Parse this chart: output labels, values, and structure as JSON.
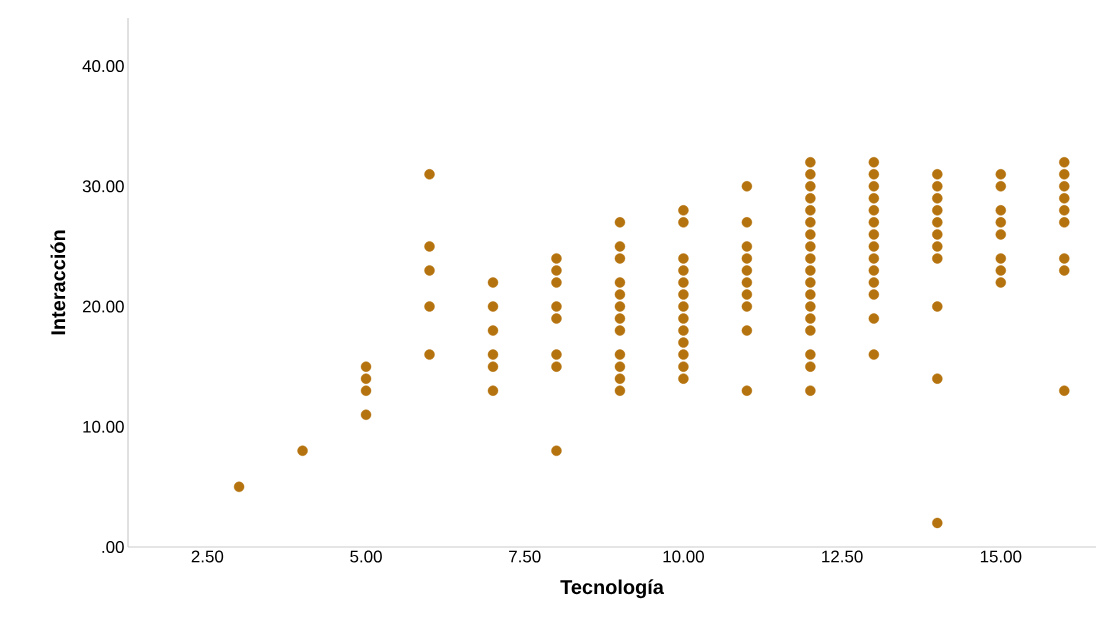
{
  "chart_data": {
    "type": "scatter",
    "xlabel": "Tecnología",
    "ylabel": "Interacción",
    "xlim": [
      1.25,
      16.5
    ],
    "ylim": [
      0,
      44
    ],
    "xticks": [
      {
        "value": 2.5,
        "label": "2.50"
      },
      {
        "value": 5,
        "label": "5.00"
      },
      {
        "value": 7.5,
        "label": "7.50"
      },
      {
        "value": 10,
        "label": "10.00"
      },
      {
        "value": 12.5,
        "label": "12.50"
      },
      {
        "value": 15,
        "label": "15.00"
      }
    ],
    "yticks": [
      {
        "value": 0,
        "label": ".00"
      },
      {
        "value": 10,
        "label": "10.00"
      },
      {
        "value": 20,
        "label": "20.00"
      },
      {
        "value": 30,
        "label": "30.00"
      },
      {
        "value": 40,
        "label": "40.00"
      }
    ],
    "grid": false,
    "marker": "circle",
    "series": [
      {
        "color": "#b5730f",
        "x": [
          3,
          4,
          5,
          5,
          5,
          5,
          6,
          6,
          6,
          6,
          6,
          7,
          7,
          7,
          7,
          7,
          7,
          8,
          8,
          8,
          8,
          8,
          8,
          8,
          8,
          9,
          9,
          9,
          9,
          9,
          9,
          9,
          9,
          9,
          9,
          9,
          9,
          10,
          10,
          10,
          10,
          10,
          10,
          10,
          10,
          10,
          10,
          10,
          10,
          10,
          11,
          11,
          11,
          11,
          11,
          11,
          11,
          11,
          11,
          11,
          12,
          12,
          12,
          12,
          12,
          12,
          12,
          12,
          12,
          12,
          12,
          12,
          12,
          12,
          12,
          12,
          12,
          12,
          13,
          13,
          13,
          13,
          13,
          13,
          13,
          13,
          13,
          13,
          13,
          13,
          13,
          13,
          14,
          14,
          14,
          14,
          14,
          14,
          14,
          14,
          14,
          14,
          14,
          15,
          15,
          15,
          15,
          15,
          15,
          15,
          15,
          16,
          16,
          16,
          16,
          16,
          16,
          16,
          16,
          16
        ],
        "values": [
          5,
          8,
          15,
          14,
          13,
          11,
          31,
          25,
          23,
          20,
          16,
          22,
          20,
          18,
          16,
          15,
          13,
          24,
          23,
          22,
          20,
          19,
          16,
          15,
          8,
          27,
          25,
          24,
          22,
          21,
          20,
          19,
          18,
          16,
          15,
          14,
          13,
          28,
          27,
          24,
          23,
          22,
          21,
          20,
          19,
          18,
          17,
          16,
          15,
          14,
          30,
          27,
          25,
          24,
          23,
          22,
          21,
          20,
          18,
          13,
          32,
          31,
          30,
          29,
          28,
          27,
          26,
          25,
          24,
          23,
          22,
          21,
          20,
          19,
          18,
          16,
          15,
          13,
          32,
          31,
          30,
          29,
          28,
          27,
          26,
          25,
          24,
          23,
          22,
          21,
          19,
          16,
          31,
          30,
          29,
          28,
          27,
          26,
          25,
          24,
          20,
          14,
          2,
          31,
          30,
          28,
          27,
          26,
          24,
          23,
          22,
          32,
          31,
          30,
          29,
          28,
          27,
          24,
          23,
          13
        ]
      }
    ]
  }
}
